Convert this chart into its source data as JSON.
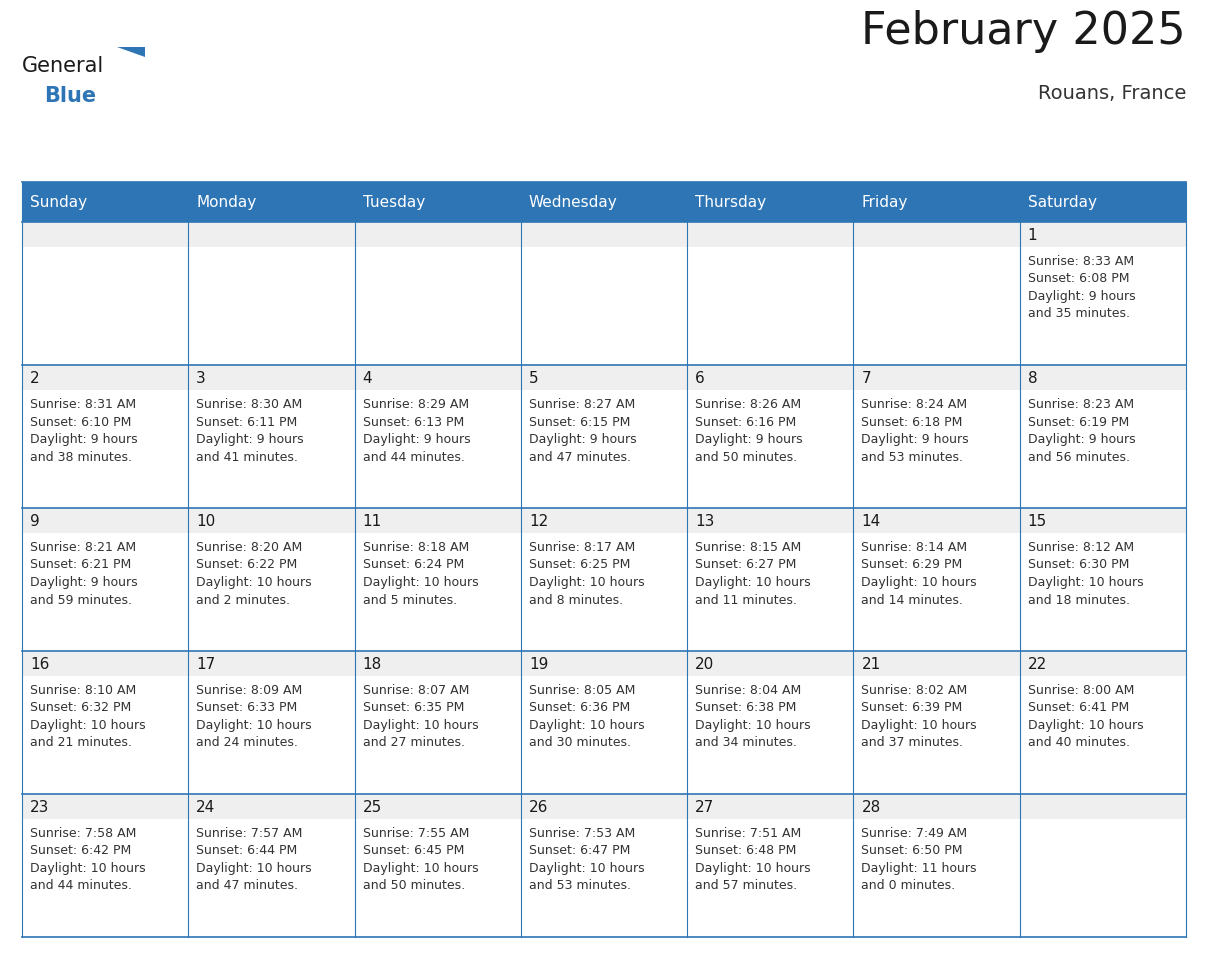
{
  "title": "February 2025",
  "subtitle": "Rouans, France",
  "header_bg_color": "#2E75B6",
  "header_text_color": "#FFFFFF",
  "day_names": [
    "Sunday",
    "Monday",
    "Tuesday",
    "Wednesday",
    "Thursday",
    "Friday",
    "Saturday"
  ],
  "cell_bg_white": "#FFFFFF",
  "cell_day_num_bg": "#EFEFEF",
  "grid_color": "#2E75B6",
  "day_num_color": "#1a1a1a",
  "info_text_color": "#333333",
  "days": [
    {
      "day": 1,
      "col": 6,
      "row": 0,
      "sunrise": "8:33 AM",
      "sunset": "6:08 PM",
      "daylight_line1": "Daylight: 9 hours",
      "daylight_line2": "and 35 minutes."
    },
    {
      "day": 2,
      "col": 0,
      "row": 1,
      "sunrise": "8:31 AM",
      "sunset": "6:10 PM",
      "daylight_line1": "Daylight: 9 hours",
      "daylight_line2": "and 38 minutes."
    },
    {
      "day": 3,
      "col": 1,
      "row": 1,
      "sunrise": "8:30 AM",
      "sunset": "6:11 PM",
      "daylight_line1": "Daylight: 9 hours",
      "daylight_line2": "and 41 minutes."
    },
    {
      "day": 4,
      "col": 2,
      "row": 1,
      "sunrise": "8:29 AM",
      "sunset": "6:13 PM",
      "daylight_line1": "Daylight: 9 hours",
      "daylight_line2": "and 44 minutes."
    },
    {
      "day": 5,
      "col": 3,
      "row": 1,
      "sunrise": "8:27 AM",
      "sunset": "6:15 PM",
      "daylight_line1": "Daylight: 9 hours",
      "daylight_line2": "and 47 minutes."
    },
    {
      "day": 6,
      "col": 4,
      "row": 1,
      "sunrise": "8:26 AM",
      "sunset": "6:16 PM",
      "daylight_line1": "Daylight: 9 hours",
      "daylight_line2": "and 50 minutes."
    },
    {
      "day": 7,
      "col": 5,
      "row": 1,
      "sunrise": "8:24 AM",
      "sunset": "6:18 PM",
      "daylight_line1": "Daylight: 9 hours",
      "daylight_line2": "and 53 minutes."
    },
    {
      "day": 8,
      "col": 6,
      "row": 1,
      "sunrise": "8:23 AM",
      "sunset": "6:19 PM",
      "daylight_line1": "Daylight: 9 hours",
      "daylight_line2": "and 56 minutes."
    },
    {
      "day": 9,
      "col": 0,
      "row": 2,
      "sunrise": "8:21 AM",
      "sunset": "6:21 PM",
      "daylight_line1": "Daylight: 9 hours",
      "daylight_line2": "and 59 minutes."
    },
    {
      "day": 10,
      "col": 1,
      "row": 2,
      "sunrise": "8:20 AM",
      "sunset": "6:22 PM",
      "daylight_line1": "Daylight: 10 hours",
      "daylight_line2": "and 2 minutes."
    },
    {
      "day": 11,
      "col": 2,
      "row": 2,
      "sunrise": "8:18 AM",
      "sunset": "6:24 PM",
      "daylight_line1": "Daylight: 10 hours",
      "daylight_line2": "and 5 minutes."
    },
    {
      "day": 12,
      "col": 3,
      "row": 2,
      "sunrise": "8:17 AM",
      "sunset": "6:25 PM",
      "daylight_line1": "Daylight: 10 hours",
      "daylight_line2": "and 8 minutes."
    },
    {
      "day": 13,
      "col": 4,
      "row": 2,
      "sunrise": "8:15 AM",
      "sunset": "6:27 PM",
      "daylight_line1": "Daylight: 10 hours",
      "daylight_line2": "and 11 minutes."
    },
    {
      "day": 14,
      "col": 5,
      "row": 2,
      "sunrise": "8:14 AM",
      "sunset": "6:29 PM",
      "daylight_line1": "Daylight: 10 hours",
      "daylight_line2": "and 14 minutes."
    },
    {
      "day": 15,
      "col": 6,
      "row": 2,
      "sunrise": "8:12 AM",
      "sunset": "6:30 PM",
      "daylight_line1": "Daylight: 10 hours",
      "daylight_line2": "and 18 minutes."
    },
    {
      "day": 16,
      "col": 0,
      "row": 3,
      "sunrise": "8:10 AM",
      "sunset": "6:32 PM",
      "daylight_line1": "Daylight: 10 hours",
      "daylight_line2": "and 21 minutes."
    },
    {
      "day": 17,
      "col": 1,
      "row": 3,
      "sunrise": "8:09 AM",
      "sunset": "6:33 PM",
      "daylight_line1": "Daylight: 10 hours",
      "daylight_line2": "and 24 minutes."
    },
    {
      "day": 18,
      "col": 2,
      "row": 3,
      "sunrise": "8:07 AM",
      "sunset": "6:35 PM",
      "daylight_line1": "Daylight: 10 hours",
      "daylight_line2": "and 27 minutes."
    },
    {
      "day": 19,
      "col": 3,
      "row": 3,
      "sunrise": "8:05 AM",
      "sunset": "6:36 PM",
      "daylight_line1": "Daylight: 10 hours",
      "daylight_line2": "and 30 minutes."
    },
    {
      "day": 20,
      "col": 4,
      "row": 3,
      "sunrise": "8:04 AM",
      "sunset": "6:38 PM",
      "daylight_line1": "Daylight: 10 hours",
      "daylight_line2": "and 34 minutes."
    },
    {
      "day": 21,
      "col": 5,
      "row": 3,
      "sunrise": "8:02 AM",
      "sunset": "6:39 PM",
      "daylight_line1": "Daylight: 10 hours",
      "daylight_line2": "and 37 minutes."
    },
    {
      "day": 22,
      "col": 6,
      "row": 3,
      "sunrise": "8:00 AM",
      "sunset": "6:41 PM",
      "daylight_line1": "Daylight: 10 hours",
      "daylight_line2": "and 40 minutes."
    },
    {
      "day": 23,
      "col": 0,
      "row": 4,
      "sunrise": "7:58 AM",
      "sunset": "6:42 PM",
      "daylight_line1": "Daylight: 10 hours",
      "daylight_line2": "and 44 minutes."
    },
    {
      "day": 24,
      "col": 1,
      "row": 4,
      "sunrise": "7:57 AM",
      "sunset": "6:44 PM",
      "daylight_line1": "Daylight: 10 hours",
      "daylight_line2": "and 47 minutes."
    },
    {
      "day": 25,
      "col": 2,
      "row": 4,
      "sunrise": "7:55 AM",
      "sunset": "6:45 PM",
      "daylight_line1": "Daylight: 10 hours",
      "daylight_line2": "and 50 minutes."
    },
    {
      "day": 26,
      "col": 3,
      "row": 4,
      "sunrise": "7:53 AM",
      "sunset": "6:47 PM",
      "daylight_line1": "Daylight: 10 hours",
      "daylight_line2": "and 53 minutes."
    },
    {
      "day": 27,
      "col": 4,
      "row": 4,
      "sunrise": "7:51 AM",
      "sunset": "6:48 PM",
      "daylight_line1": "Daylight: 10 hours",
      "daylight_line2": "and 57 minutes."
    },
    {
      "day": 28,
      "col": 5,
      "row": 4,
      "sunrise": "7:49 AM",
      "sunset": "6:50 PM",
      "daylight_line1": "Daylight: 11 hours",
      "daylight_line2": "and 0 minutes."
    }
  ],
  "num_rows": 5,
  "num_cols": 7,
  "logo_text_general": "General",
  "logo_text_blue": "Blue",
  "logo_color_general": "#1a1a1a",
  "logo_color_blue": "#2E75B6",
  "logo_triangle_color": "#2E75B6",
  "title_fontsize": 32,
  "subtitle_fontsize": 14,
  "header_fontsize": 11,
  "day_num_fontsize": 11,
  "info_fontsize": 9
}
